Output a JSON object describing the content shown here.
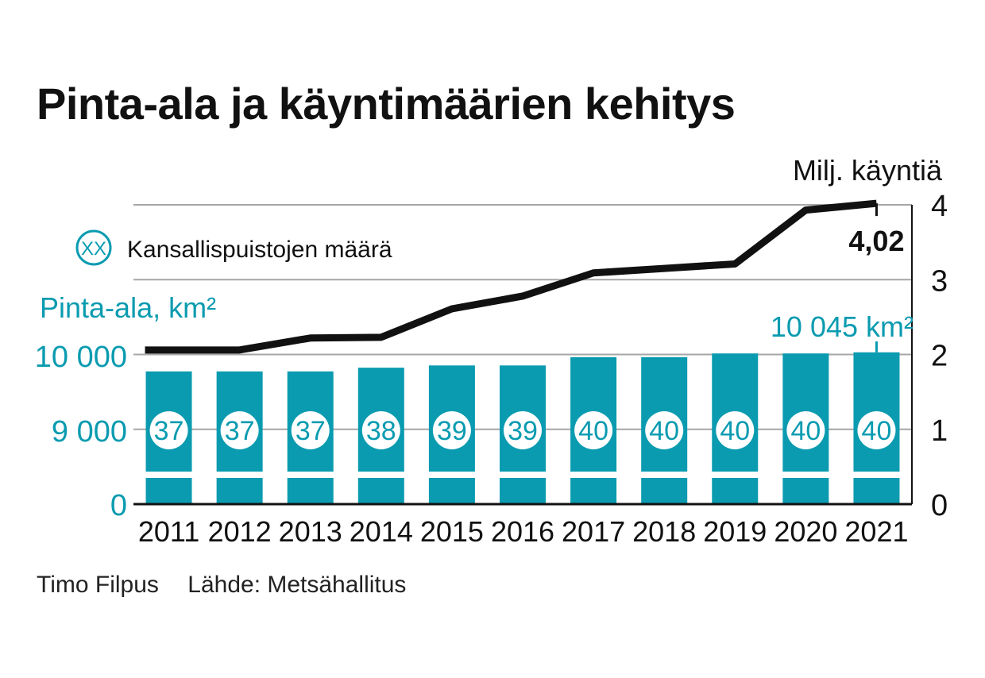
{
  "title": "Pinta-ala ja käyntimäärien kehitys",
  "credits": {
    "author": "Timo Filpus",
    "source": "Lähde: Metsähallitus"
  },
  "legend": {
    "badge": "XX",
    "label": "Kansallispuistojen määrä"
  },
  "annotations": {
    "last_visits": "4,02",
    "last_area": "10 045 km²"
  },
  "colors": {
    "bar": "#0a9bb0",
    "line": "#111111",
    "grid": "#a6a6a6",
    "left_axis_text": "#0a9bb0",
    "text": "#111111"
  },
  "chart_data": {
    "type": "bar+line",
    "categories": [
      "2011",
      "2012",
      "2013",
      "2014",
      "2015",
      "2016",
      "2017",
      "2018",
      "2019",
      "2020",
      "2021"
    ],
    "y_left": {
      "label": "Pinta-ala, km²",
      "ticks": [
        {
          "value": 0,
          "label": "0"
        },
        {
          "value": 9000,
          "label": "9 000"
        },
        {
          "value": 10000,
          "label": "10 000"
        }
      ],
      "broken_axis": true
    },
    "y_right": {
      "label": "Milj. käyntiä",
      "range": [
        0,
        4
      ],
      "ticks": [
        0,
        1,
        2,
        3,
        4
      ]
    },
    "bars": {
      "name": "Pinta-ala, km²",
      "values": [
        9789,
        9789,
        9789,
        9839,
        9869,
        9869,
        9980,
        9980,
        10030,
        10030,
        10045
      ]
    },
    "park_counts": {
      "name": "Kansallispuistojen määrä",
      "values": [
        37,
        37,
        37,
        38,
        39,
        39,
        40,
        40,
        40,
        40,
        40
      ]
    },
    "line": {
      "name": "Milj. käyntiä",
      "values": [
        2.06,
        2.06,
        2.22,
        2.23,
        2.61,
        2.78,
        3.09,
        3.15,
        3.21,
        3.93,
        4.02
      ]
    },
    "grid": true
  }
}
